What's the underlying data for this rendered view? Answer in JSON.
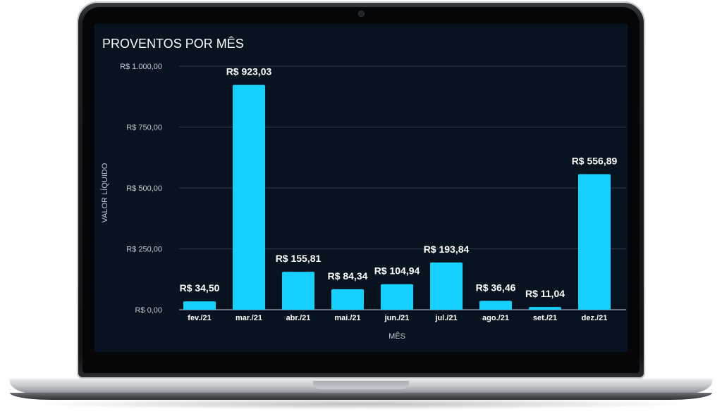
{
  "chart_data": {
    "type": "bar",
    "title": "PROVENTOS POR MÊS",
    "xlabel": "MÊS",
    "ylabel": "VALOR LÍQUIDO",
    "categories": [
      "fev./21",
      "mar./21",
      "abr./21",
      "mai./21",
      "jun./21",
      "jul./21",
      "ago./21",
      "set./21",
      "dez./21"
    ],
    "values": [
      34.5,
      923.03,
      155.81,
      84.34,
      104.94,
      193.84,
      36.46,
      11.04,
      556.89
    ],
    "value_labels": [
      "R$ 34,50",
      "R$ 923,03",
      "R$ 155,81",
      "R$ 84,34",
      "R$ 104,94",
      "R$ 193,84",
      "R$ 36,46",
      "R$ 11,04",
      "R$ 556,89"
    ],
    "y_ticks": [
      0,
      250,
      500,
      750,
      1000
    ],
    "y_tick_labels": [
      "R$ 0,00",
      "R$ 250,00",
      "R$ 500,00",
      "R$ 750,00",
      "R$ 1.000,00"
    ],
    "ylim": [
      0,
      1000
    ],
    "grid": true,
    "colors": {
      "bar": "#16d1ff",
      "background": "#07131f",
      "grid": "#2c3a48",
      "text": "#ffffff",
      "axis_text": "#c3cad2"
    }
  }
}
